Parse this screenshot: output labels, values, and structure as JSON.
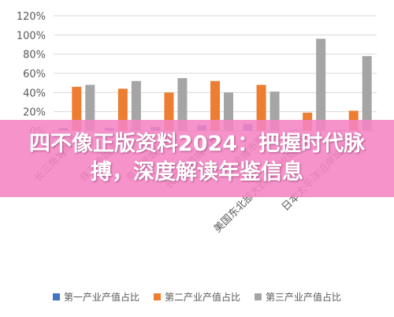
{
  "banner": {
    "text": "四不像正版资料2024：把握时代脉搏，深度解读年鉴信息"
  },
  "colors": {
    "series1": "#4472C4",
    "series2": "#ED7D31",
    "series3": "#A5A5A5",
    "banner": "#F684C4"
  },
  "chart_data": {
    "type": "bar",
    "title": "",
    "xlabel": "",
    "ylabel": "",
    "ylim": [
      0,
      120
    ],
    "yticks": [
      "0%",
      "20%",
      "40%",
      "60%",
      "80%",
      "100%",
      "120%"
    ],
    "grid": true,
    "legend_position": "bottom",
    "categories": [
      "长三角城市群",
      "珠三角城市群",
      "京津冀城市群",
      "长江中游城市群",
      "成渝城市群",
      "美国东北部大西洋沿岸城市群",
      "日本太平洋沿岸城市群"
    ],
    "series": [
      {
        "name": "第一产业产值占比",
        "values": [
          3,
          3,
          4,
          6,
          7,
          1,
          1
        ]
      },
      {
        "name": "第二产业产值占比",
        "values": [
          46,
          44,
          40,
          52,
          48,
          19,
          21
        ]
      },
      {
        "name": "第三产业产值占比",
        "values": [
          48,
          52,
          55,
          40,
          41,
          96,
          78
        ]
      }
    ]
  }
}
